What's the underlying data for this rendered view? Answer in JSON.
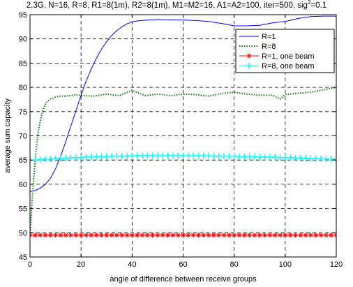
{
  "chart_data": {
    "type": "line",
    "title": "2.3G, N=16, R=8, R1=8(1m), R2=8(1m), M1=M2=16, A1=A2=100, iter=500, sig",
    "title_sup": "2",
    "title_end": "=0.1",
    "xlabel": "angle of difference between receive groups",
    "ylabel": "average sum capacity",
    "xlim": [
      0,
      120
    ],
    "ylim": [
      45,
      95
    ],
    "xticks": [
      0,
      20,
      40,
      60,
      80,
      100,
      120
    ],
    "yticks": [
      45,
      50,
      55,
      60,
      65,
      70,
      75,
      80,
      85,
      90,
      95
    ],
    "grid": true,
    "legend_position": "top-right",
    "series": [
      {
        "name": "R=1",
        "color": "#0000ff",
        "style": "solid",
        "marker": "none",
        "x": [
          0,
          2,
          4,
          6,
          8,
          10,
          12,
          14,
          16,
          18,
          20,
          22,
          24,
          26,
          28,
          30,
          32,
          34,
          36,
          38,
          40,
          42,
          44,
          46,
          48,
          50,
          55,
          60,
          65,
          70,
          75,
          80,
          85,
          90,
          95,
          100,
          105,
          110,
          115,
          120
        ],
        "y": [
          58.5,
          58.7,
          59.2,
          60.0,
          61.2,
          63.2,
          65.8,
          68.8,
          72.0,
          75.2,
          78.4,
          81.3,
          83.8,
          86.0,
          87.9,
          89.4,
          90.7,
          91.7,
          92.5,
          93.1,
          93.5,
          93.7,
          93.8,
          93.9,
          93.9,
          94.0,
          93.9,
          93.9,
          93.8,
          93.6,
          93.2,
          92.7,
          92.7,
          92.8,
          93.3,
          93.6,
          94.2,
          94.6,
          94.7,
          94.7
        ]
      },
      {
        "name": "R=8",
        "color": "#008000",
        "style": "dotted",
        "marker": "none",
        "x": [
          0,
          1,
          2,
          3,
          4,
          5,
          6,
          7,
          8,
          10,
          12,
          14,
          16,
          18,
          20,
          25,
          30,
          35,
          40,
          45,
          50,
          55,
          60,
          65,
          70,
          75,
          80,
          85,
          90,
          95,
          98,
          100,
          105,
          110,
          115,
          120
        ],
        "y": [
          49.5,
          58.0,
          65.0,
          70.0,
          73.0,
          75.2,
          76.5,
          77.2,
          77.6,
          78.0,
          78.2,
          78.2,
          78.3,
          78.5,
          78.3,
          78.2,
          78.6,
          78.3,
          79.4,
          78.3,
          78.6,
          78.3,
          78.6,
          78.5,
          78.2,
          78.7,
          79.0,
          78.6,
          78.4,
          78.4,
          77.6,
          78.5,
          78.8,
          79.0,
          79.5,
          80.0
        ]
      },
      {
        "name": "R=1, one beam",
        "color": "#ff0000",
        "style": "solid",
        "marker": "asterisk",
        "x": [
          0,
          2,
          4,
          6,
          8,
          10,
          12,
          14,
          16,
          18,
          20,
          22,
          24,
          26,
          28,
          30,
          32,
          34,
          36,
          38,
          40,
          42,
          44,
          46,
          48,
          50,
          52,
          54,
          56,
          58,
          60,
          62,
          64,
          66,
          68,
          70,
          72,
          74,
          76,
          78,
          80,
          82,
          84,
          86,
          88,
          90,
          92,
          94,
          96,
          98,
          100,
          102,
          104,
          106,
          108,
          110,
          112,
          114,
          116,
          118,
          120
        ],
        "y": [
          49.5,
          49.5,
          49.5,
          49.5,
          49.5,
          49.5,
          49.5,
          49.5,
          49.5,
          49.5,
          49.5,
          49.5,
          49.5,
          49.5,
          49.5,
          49.5,
          49.5,
          49.5,
          49.5,
          49.5,
          49.5,
          49.5,
          49.5,
          49.5,
          49.5,
          49.5,
          49.5,
          49.5,
          49.5,
          49.5,
          49.5,
          49.5,
          49.5,
          49.5,
          49.5,
          49.5,
          49.5,
          49.5,
          49.5,
          49.5,
          49.5,
          49.5,
          49.5,
          49.5,
          49.5,
          49.5,
          49.5,
          49.5,
          49.5,
          49.5,
          49.5,
          49.5,
          49.5,
          49.5,
          49.5,
          49.5,
          49.5,
          49.5,
          49.5,
          49.5,
          49.5
        ]
      },
      {
        "name": "R=8, one beam",
        "color": "#00ffff",
        "style": "solid",
        "marker": "plus",
        "x": [
          0,
          2,
          4,
          6,
          8,
          10,
          12,
          14,
          16,
          18,
          20,
          22,
          24,
          26,
          28,
          30,
          32,
          34,
          36,
          38,
          40,
          42,
          44,
          46,
          48,
          50,
          52,
          54,
          56,
          58,
          60,
          62,
          64,
          66,
          68,
          70,
          72,
          74,
          76,
          78,
          80,
          82,
          84,
          86,
          88,
          90,
          92,
          94,
          96,
          98,
          100,
          102,
          104,
          106,
          108,
          110,
          112,
          114,
          116,
          118,
          120
        ],
        "y": [
          65.0,
          65.0,
          65.1,
          65.2,
          65.2,
          65.3,
          65.3,
          65.4,
          65.5,
          65.5,
          65.5,
          65.6,
          65.6,
          65.7,
          65.7,
          65.7,
          65.8,
          65.8,
          65.8,
          65.8,
          65.9,
          65.9,
          65.9,
          65.9,
          65.9,
          65.9,
          65.9,
          65.9,
          65.9,
          65.9,
          65.9,
          65.9,
          65.9,
          65.9,
          65.9,
          65.9,
          65.8,
          65.8,
          65.8,
          65.8,
          65.8,
          65.7,
          65.7,
          65.7,
          65.7,
          65.6,
          65.6,
          65.6,
          65.6,
          65.5,
          65.5,
          65.5,
          65.4,
          65.4,
          65.4,
          65.3,
          65.3,
          65.3,
          65.2,
          65.2,
          65.2
        ]
      }
    ]
  }
}
